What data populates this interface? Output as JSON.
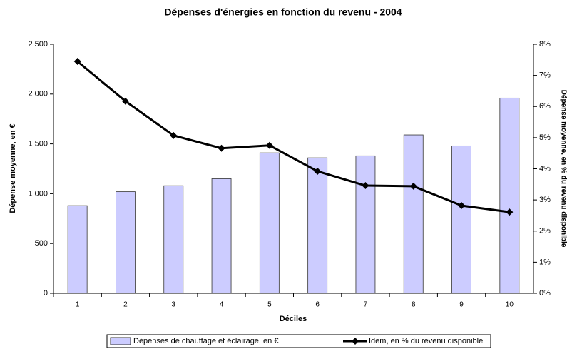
{
  "chart_data": {
    "type": "bar",
    "title": "Dépenses d'énergies en fonction du revenu - 2004",
    "xlabel": "Déciles",
    "ylabel": "Dépense moyenne, en €",
    "y2label": "Dépense moyenne, en % du revenu disponible",
    "categories": [
      "1",
      "2",
      "3",
      "4",
      "5",
      "6",
      "7",
      "8",
      "9",
      "10"
    ],
    "series": [
      {
        "name": "Dépenses de chauffage et éclairage, en €",
        "type": "bar",
        "color": "#ccccff",
        "values": [
          880,
          1020,
          1080,
          1150,
          1410,
          1360,
          1380,
          1590,
          1480,
          1960
        ]
      },
      {
        "name": "Idem, en % du revenu disponible",
        "type": "line",
        "axis": "y2",
        "color": "#000000",
        "values": [
          7.45,
          6.17,
          5.07,
          4.66,
          4.75,
          3.92,
          3.46,
          3.44,
          2.82,
          2.61
        ]
      }
    ],
    "ylim": [
      0,
      2500
    ],
    "yticks": [
      0,
      500,
      {
        "value": 1000,
        "label": "1 000"
      },
      {
        "value": 1500,
        "label": "1 500"
      },
      {
        "value": 2000,
        "label": "2 000"
      },
      {
        "value": 2500,
        "label": "2 500"
      }
    ],
    "y2lim": [
      0,
      8
    ],
    "y2ticks": [
      {
        "value": 0,
        "label": "0%"
      },
      {
        "value": 1,
        "label": "1%"
      },
      {
        "value": 2,
        "label": "2%"
      },
      {
        "value": 3,
        "label": "3%"
      },
      {
        "value": 4,
        "label": "4%"
      },
      {
        "value": 5,
        "label": "5%"
      },
      {
        "value": 6,
        "label": "6%"
      },
      {
        "value": 7,
        "label": "7%"
      },
      {
        "value": 8,
        "label": "8%"
      }
    ],
    "legend": "bottom"
  }
}
